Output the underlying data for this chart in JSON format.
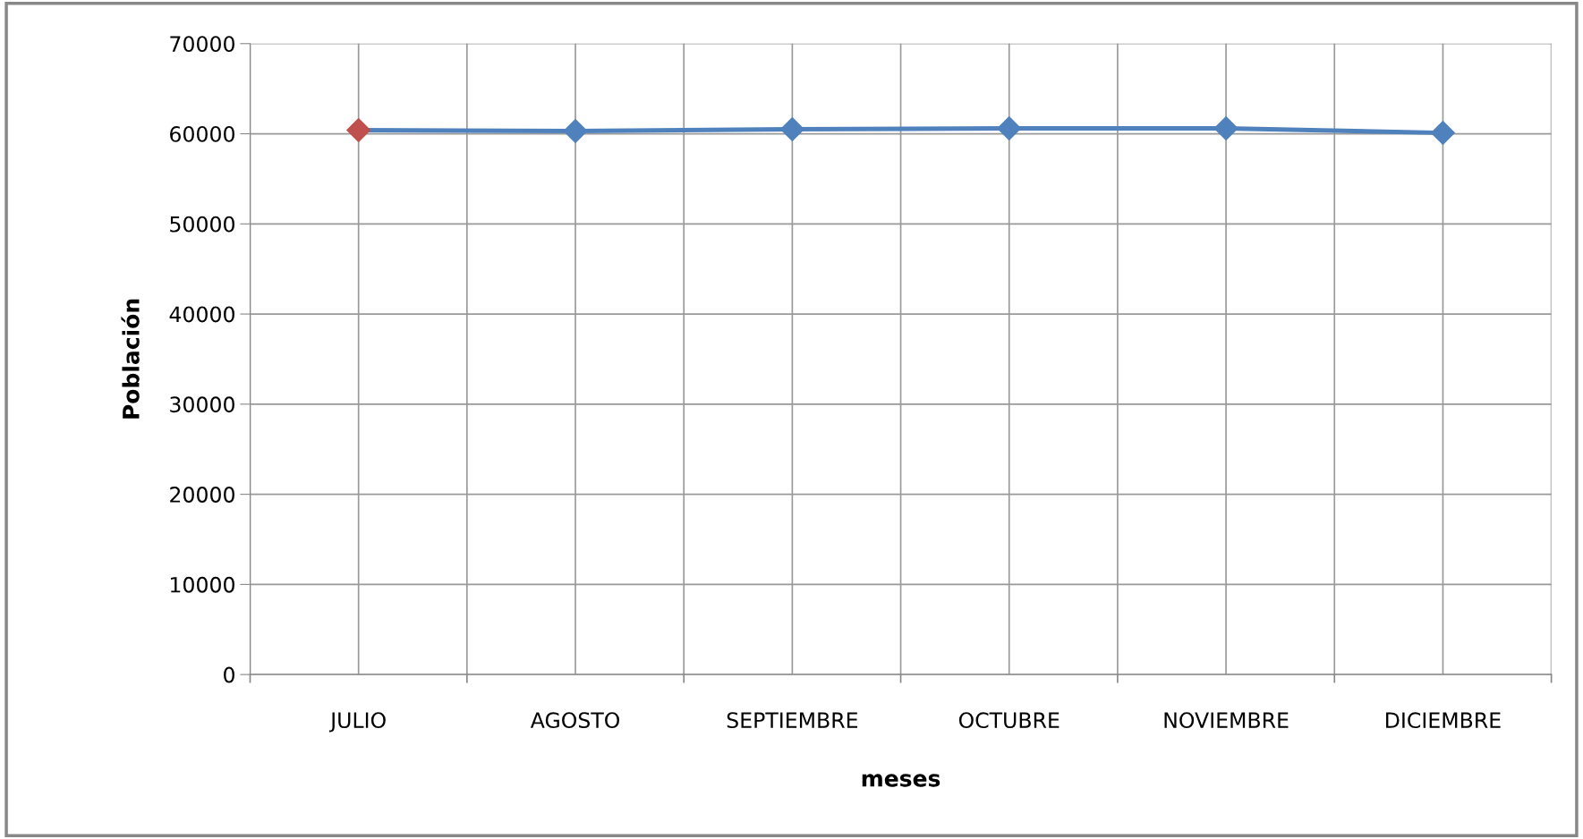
{
  "chart_data": {
    "type": "line",
    "xlabel": "meses",
    "ylabel": "Población",
    "categories": [
      "JULIO",
      "AGOSTO",
      "SEPTIEMBRE",
      "OCTUBRE",
      "NOVIEMBRE",
      "DICIEMBRE"
    ],
    "series": [
      {
        "color": "#4f81bd",
        "colors": [
          "#c0504d",
          "#4f81bd",
          "#4f81bd",
          "#4f81bd",
          "#4f81bd",
          "#4f81bd"
        ],
        "values": [
          60400,
          60300,
          60500,
          60600,
          60600,
          60100
        ]
      }
    ],
    "ylim": [
      0,
      70000
    ],
    "yticks": [
      0,
      10000,
      20000,
      30000,
      40000,
      50000,
      60000,
      70000
    ],
    "grid": true,
    "marker": "diamond",
    "line_style": "solid"
  }
}
